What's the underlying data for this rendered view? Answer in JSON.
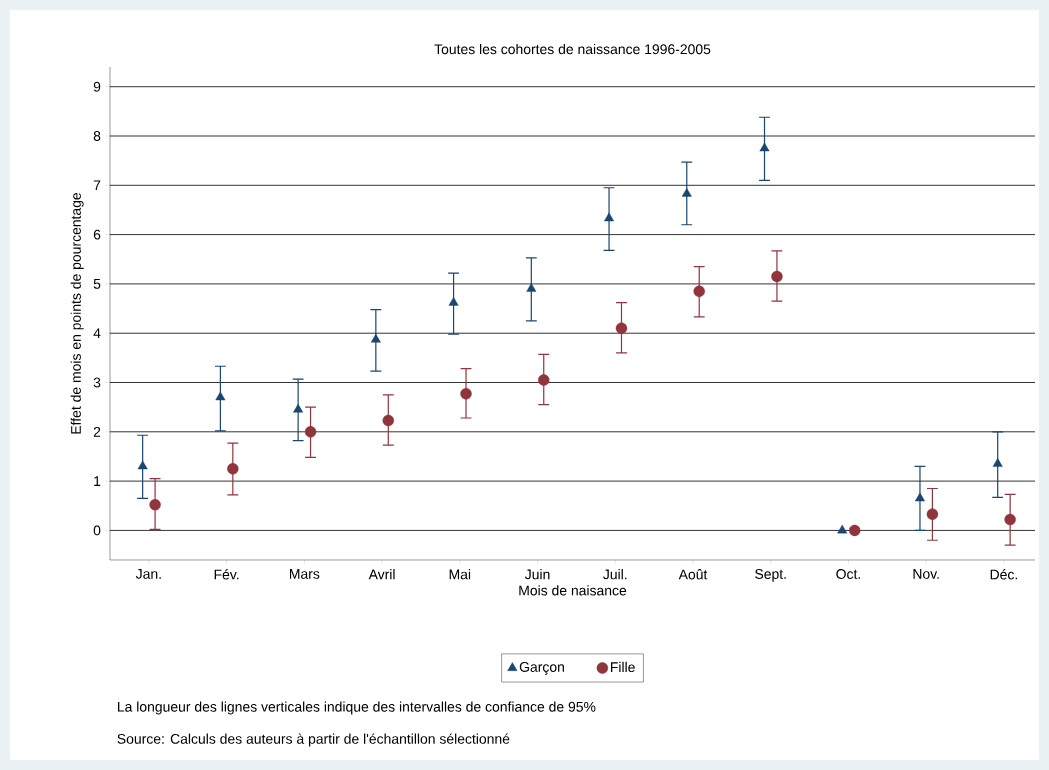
{
  "chart_data": {
    "type": "scatter",
    "title": "Toutes les cohortes de naissance 1996-2005",
    "xlabel": "Mois de naisance",
    "ylabel": "Effet de mois en points de pourcentage",
    "categories": [
      "Jan.",
      "Fév.",
      "Mars",
      "Avril",
      "Mai",
      "Juin",
      "Juil.",
      "Août",
      "Sept.",
      "Oct.",
      "Nov.",
      "Déc."
    ],
    "series": [
      {
        "name": "Garçon",
        "color": "#1a476f",
        "marker": "triangle",
        "values": [
          1.3,
          2.7,
          2.45,
          3.87,
          4.62,
          4.9,
          6.33,
          6.83,
          7.75,
          0,
          0.65,
          1.35
        ],
        "errors": [
          [
            0.65,
            1.93
          ],
          [
            2.02,
            3.33
          ],
          [
            1.82,
            3.07
          ],
          [
            3.23,
            4.48
          ],
          [
            3.98,
            5.22
          ],
          [
            4.25,
            5.53
          ],
          [
            5.68,
            6.95
          ],
          [
            6.2,
            7.47
          ],
          [
            7.1,
            8.38
          ],
          null,
          [
            0,
            1.3
          ],
          [
            0.67,
            2.0
          ]
        ]
      },
      {
        "name": "Fille",
        "color": "#90353b",
        "marker": "circle",
        "values": [
          0.52,
          1.25,
          2.0,
          2.23,
          2.77,
          3.05,
          4.1,
          4.85,
          5.15,
          0,
          0.33,
          0.22
        ],
        "errors": [
          [
            0.02,
            1.05
          ],
          [
            0.72,
            1.77
          ],
          [
            1.48,
            2.5
          ],
          [
            1.73,
            2.75
          ],
          [
            2.28,
            3.28
          ],
          [
            2.55,
            3.57
          ],
          [
            3.6,
            4.62
          ],
          [
            4.33,
            5.35
          ],
          [
            4.65,
            5.67
          ],
          null,
          [
            -0.2,
            0.85
          ],
          [
            -0.3,
            0.73
          ]
        ]
      }
    ],
    "ylim": [
      -0.6,
      9.4
    ],
    "yticks": [
      0,
      1,
      2,
      3,
      4,
      5,
      6,
      7,
      8,
      9
    ],
    "grid": "y",
    "legend": "bottom",
    "annotations": [
      "La longueur des lignes verticales indique des intervalles de confiance de 95%",
      "Source: Calculs des auteurs à partir de l'échantillon sélectionné"
    ]
  }
}
